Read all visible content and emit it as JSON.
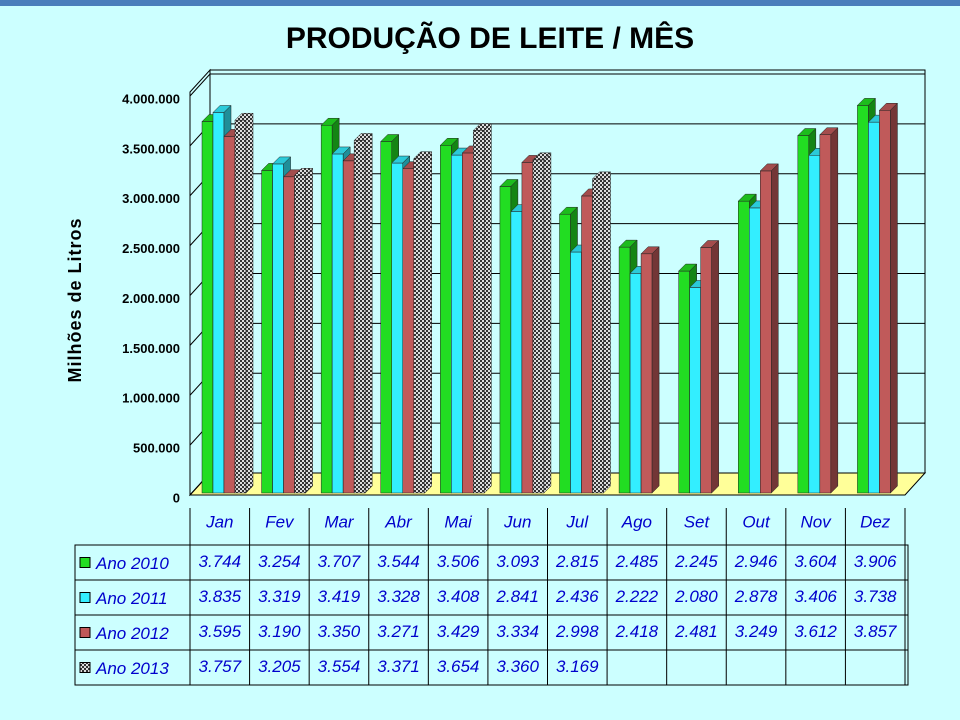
{
  "chart_data": {
    "type": "bar3d",
    "title": "PRODUÇÃO DE LEITE / MÊS",
    "y_label": "Milhões de Litros",
    "categories": [
      "Jan",
      "Fev",
      "Mar",
      "Abr",
      "Mai",
      "Jun",
      "Jul",
      "Ago",
      "Set",
      "Out",
      "Nov",
      "Dez"
    ],
    "series": [
      {
        "name": "Ano 2010",
        "color": "#22dd22",
        "values": [
          3744000,
          3254000,
          3707000,
          3544000,
          3506000,
          3093000,
          2815000,
          2485000,
          2245000,
          2946000,
          3604000,
          3906000
        ],
        "value_labels": [
          "3.744",
          "3.254",
          "3.707",
          "3.544",
          "3.506",
          "3.093",
          "2.815",
          "2.485",
          "2.245",
          "2.946",
          "3.604",
          "3.906"
        ]
      },
      {
        "name": "Ano 2011",
        "color": "#33eeff",
        "values": [
          3835000,
          3319000,
          3419000,
          3328000,
          3408000,
          2841000,
          2436000,
          2222000,
          2080000,
          2878000,
          3406000,
          3738000
        ],
        "value_labels": [
          "3.835",
          "3.319",
          "3.419",
          "3.328",
          "3.408",
          "2.841",
          "2.436",
          "2.222",
          "2.080",
          "2.878",
          "3.406",
          "3.738"
        ]
      },
      {
        "name": "Ano 2012",
        "color": "#c05a5a",
        "values": [
          3595000,
          3190000,
          3350000,
          3271000,
          3429000,
          3334000,
          2998000,
          2418000,
          2481000,
          3249000,
          3612000,
          3857000
        ],
        "value_labels": [
          "3.595",
          "3.190",
          "3.350",
          "3.271",
          "3.429",
          "3.334",
          "2.998",
          "2.418",
          "2.481",
          "3.249",
          "3.612",
          "3.857"
        ]
      },
      {
        "name": "Ano 2013",
        "color": "#808080",
        "pattern": "checkered",
        "values": [
          3757000,
          3205000,
          3554000,
          3371000,
          3654000,
          3360000,
          3169000,
          null,
          null,
          null,
          null,
          null
        ],
        "value_labels": [
          "3.757",
          "3.205",
          "3.554",
          "3.371",
          "3.654",
          "3.360",
          "3.169",
          null,
          null,
          null,
          null,
          null
        ]
      }
    ],
    "ylim": [
      0,
      4000000
    ],
    "yticks": [
      0,
      {
        "value": 500000,
        "label": "500.000"
      },
      {
        "value": 1000000,
        "label": "1.000.000"
      },
      {
        "value": 1500000,
        "label": "1.500.000"
      },
      {
        "value": 2000000,
        "label": "2.000.000"
      },
      {
        "value": 2500000,
        "label": "2.500.000"
      },
      {
        "value": 3000000,
        "label": "3.000.000"
      },
      {
        "value": 3500000,
        "label": "3.500.000"
      },
      {
        "value": 4000000,
        "label": "4.000.000"
      }
    ],
    "grid": true
  }
}
